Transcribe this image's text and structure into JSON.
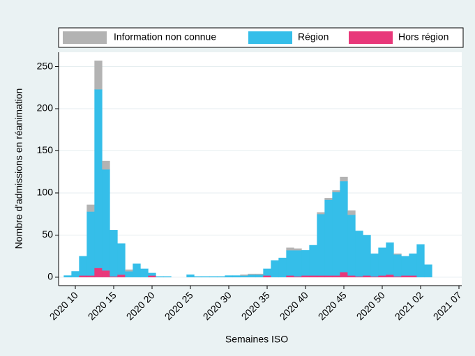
{
  "chart_data": {
    "type": "stacked-bar",
    "xlabel": "Semaines ISO",
    "ylabel": "Nombre d'admissions en réanimation",
    "categories": [
      null,
      "2020 10",
      null,
      null,
      null,
      null,
      "2020 15",
      null,
      null,
      null,
      null,
      "2020 20",
      null,
      null,
      null,
      null,
      "2020 25",
      null,
      null,
      null,
      null,
      "2020 30",
      null,
      null,
      null,
      null,
      "2020 35",
      null,
      null,
      null,
      null,
      "2020 40",
      null,
      null,
      null,
      null,
      "2020 45",
      null,
      null,
      null,
      null,
      "2020 50",
      null,
      null,
      null,
      null,
      "2021 02",
      null,
      null,
      null,
      null,
      "2021 07"
    ],
    "series": [
      {
        "name": "Information non connue",
        "color": "#b3b3b3",
        "values": [
          0,
          0,
          0,
          8,
          34,
          10,
          0,
          0,
          2,
          0,
          0,
          0,
          0,
          0,
          0,
          0,
          0,
          0,
          0,
          0,
          0,
          0,
          0,
          1,
          1,
          1,
          0,
          0,
          0,
          3,
          2,
          0,
          0,
          2,
          2,
          2,
          5,
          5,
          0,
          0,
          0,
          0,
          0,
          1,
          0,
          0,
          0,
          0,
          null,
          null,
          null,
          null
        ]
      },
      {
        "name": "Région",
        "color": "#35bee9",
        "values": [
          2,
          7,
          23,
          76,
          212,
          120,
          55,
          37,
          7,
          16,
          10,
          3,
          1,
          1,
          0,
          0,
          3,
          1,
          1,
          1,
          1,
          2,
          2,
          2,
          3,
          3,
          8,
          20,
          23,
          30,
          31,
          30,
          36,
          73,
          90,
          99,
          108,
          72,
          54,
          48,
          27,
          33,
          38,
          26,
          23,
          26,
          39,
          15,
          null,
          null,
          null,
          null
        ]
      },
      {
        "name": "Hors région",
        "color": "#e8387a",
        "values": [
          0,
          0,
          2,
          2,
          11,
          8,
          1,
          3,
          0,
          0,
          0,
          2,
          0,
          0,
          0,
          0,
          0,
          0,
          0,
          0,
          0,
          0,
          0,
          0,
          0,
          0,
          2,
          0,
          0,
          2,
          1,
          2,
          2,
          2,
          2,
          2,
          6,
          2,
          1,
          2,
          1,
          2,
          3,
          1,
          2,
          2,
          0,
          0,
          null,
          null,
          null,
          null
        ]
      }
    ],
    "ylim": [
      -10,
      267
    ],
    "yticks": [
      0,
      50,
      100,
      150,
      200,
      250
    ],
    "grid": true,
    "legend": "top"
  }
}
